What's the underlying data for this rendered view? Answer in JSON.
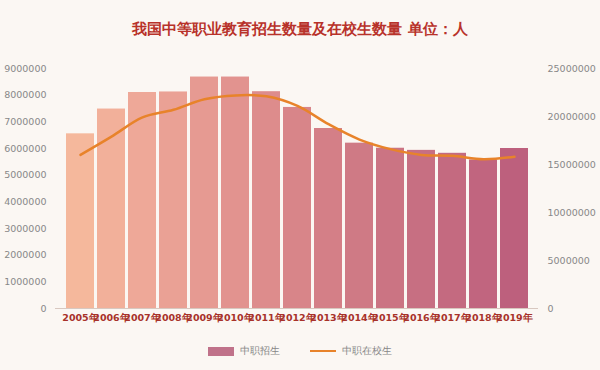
{
  "chart_data": {
    "type": "bar",
    "title": "我国中等职业教育招生数量及在校生数量 单位：人",
    "categories": [
      "2005年",
      "2006年",
      "2007年",
      "2008年",
      "2009年",
      "2010年",
      "2011年",
      "2012年",
      "2013年",
      "2014年",
      "2015年",
      "2016年",
      "2017年",
      "2018年",
      "2019年"
    ],
    "series": [
      {
        "name": "中职招生",
        "type": "bar",
        "color": "#c0728a",
        "colors": [
          "#f5b89c",
          "#f2b09a",
          "#eea898",
          "#eaa195",
          "#e69a92",
          "#e2938f",
          "#dd8c8c",
          "#d88589",
          "#d47f87",
          "#cf7a85",
          "#cb7483",
          "#c76f82",
          "#c46a80",
          "#c1657f",
          "#bd607d"
        ],
        "values": [
          6550000,
          7480000,
          8100000,
          8120000,
          8680000,
          8680000,
          8130000,
          7540000,
          6750000,
          6200000,
          6010000,
          5930000,
          5820000,
          5570000,
          6000000
        ]
      },
      {
        "name": "中职在校生",
        "type": "line",
        "axis": "y2",
        "color": "#e8832a",
        "values": [
          16000000,
          17900000,
          19900000,
          20700000,
          21800000,
          22200000,
          22100000,
          21100000,
          19200000,
          17600000,
          16600000,
          16000000,
          15900000,
          15550000,
          15800000
        ]
      }
    ],
    "ylim": [
      0,
      9000000
    ],
    "yticks": [
      0,
      1000000,
      2000000,
      3000000,
      4000000,
      5000000,
      6000000,
      7000000,
      8000000,
      9000000
    ],
    "y2lim": [
      0,
      25000000
    ],
    "y2ticks": [
      0,
      5000000,
      10000000,
      15000000,
      20000000,
      25000000
    ],
    "grid": false,
    "legend": "bottom"
  }
}
